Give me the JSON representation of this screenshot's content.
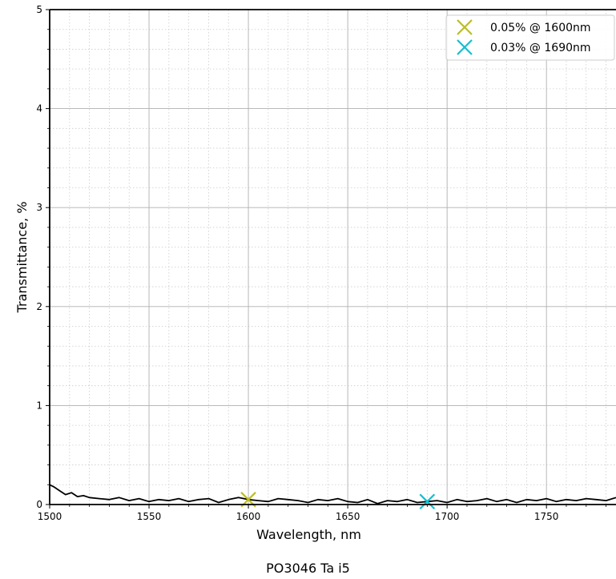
{
  "chart_data": {
    "type": "line",
    "xlabel": "Wavelength, nm",
    "ylabel": "Transmittance, %",
    "xlim": [
      1500,
      1785
    ],
    "ylim": [
      0,
      5
    ],
    "xticks": [
      1500,
      1550,
      1600,
      1650,
      1700,
      1750
    ],
    "yticks": [
      0,
      1,
      2,
      3,
      4,
      5
    ],
    "grid": {
      "major": true,
      "minor": true
    },
    "legend_position": "top-right",
    "series": [
      {
        "color": "#000000",
        "x": [
          1500,
          1502,
          1505,
          1508,
          1511,
          1514,
          1517,
          1520,
          1525,
          1530,
          1535,
          1540,
          1545,
          1550,
          1555,
          1560,
          1565,
          1570,
          1575,
          1580,
          1585,
          1590,
          1595,
          1600,
          1605,
          1610,
          1615,
          1620,
          1625,
          1630,
          1635,
          1640,
          1645,
          1650,
          1655,
          1660,
          1665,
          1670,
          1675,
          1680,
          1685,
          1690,
          1695,
          1700,
          1705,
          1710,
          1715,
          1720,
          1725,
          1730,
          1735,
          1740,
          1745,
          1750,
          1755,
          1760,
          1765,
          1770,
          1775,
          1780,
          1785
        ],
        "y": [
          0.2,
          0.18,
          0.14,
          0.1,
          0.12,
          0.08,
          0.09,
          0.07,
          0.06,
          0.05,
          0.07,
          0.04,
          0.06,
          0.03,
          0.05,
          0.04,
          0.06,
          0.03,
          0.05,
          0.06,
          0.02,
          0.05,
          0.07,
          0.05,
          0.04,
          0.03,
          0.06,
          0.05,
          0.04,
          0.02,
          0.05,
          0.04,
          0.06,
          0.03,
          0.02,
          0.05,
          0.01,
          0.04,
          0.03,
          0.05,
          0.02,
          0.03,
          0.04,
          0.02,
          0.05,
          0.03,
          0.04,
          0.06,
          0.03,
          0.05,
          0.02,
          0.05,
          0.04,
          0.06,
          0.03,
          0.05,
          0.04,
          0.06,
          0.05,
          0.04,
          0.07
        ]
      }
    ],
    "markers": [
      {
        "x": 1600,
        "y": 0.05,
        "color": "#bcbd22",
        "label": "0.05% @ 1600nm"
      },
      {
        "x": 1690,
        "y": 0.03,
        "color": "#17becf",
        "label": "0.03% @ 1690nm"
      }
    ]
  },
  "caption": "PO3046 Ta i5"
}
